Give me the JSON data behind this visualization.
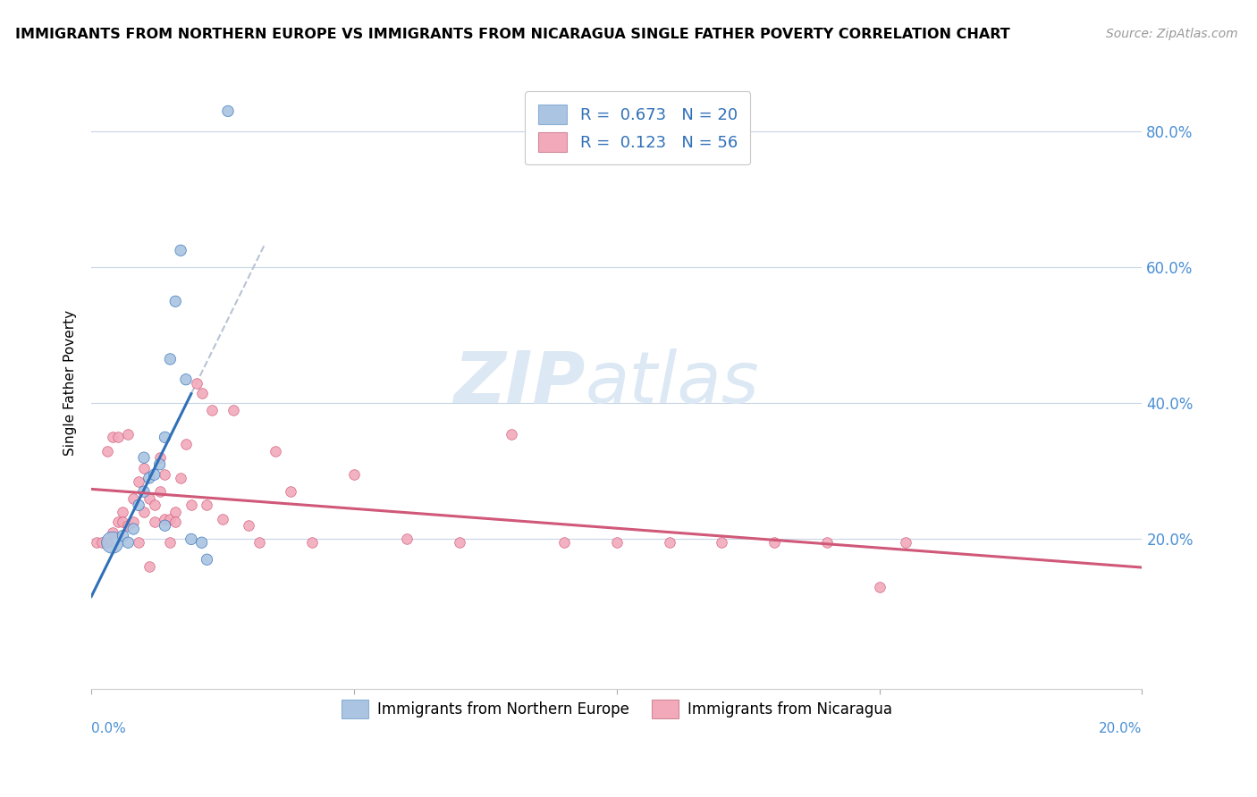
{
  "title": "IMMIGRANTS FROM NORTHERN EUROPE VS IMMIGRANTS FROM NICARAGUA SINGLE FATHER POVERTY CORRELATION CHART",
  "source": "Source: ZipAtlas.com",
  "ylabel": "Single Father Poverty",
  "ytick_labels": [
    "20.0%",
    "40.0%",
    "60.0%",
    "80.0%"
  ],
  "ytick_values": [
    0.2,
    0.4,
    0.6,
    0.8
  ],
  "xlim": [
    0.0,
    0.2
  ],
  "ylim": [
    -0.02,
    0.88
  ],
  "legend_label1_R": "0.673",
  "legend_label1_N": "20",
  "legend_label2_R": "0.123",
  "legend_label2_N": "56",
  "color_blue": "#aac4e2",
  "color_pink": "#f2aabb",
  "trendline_blue": "#3070b8",
  "trendline_pink": "#d05878",
  "trendline_gray": "#b8c4d4",
  "legend_bottom_label1": "Immigrants from Northern Europe",
  "legend_bottom_label2": "Immigrants from Nicaragua",
  "blue_scatter_x": [
    0.004,
    0.006,
    0.007,
    0.008,
    0.009,
    0.01,
    0.01,
    0.011,
    0.012,
    0.013,
    0.014,
    0.014,
    0.015,
    0.016,
    0.017,
    0.018,
    0.019,
    0.021,
    0.022,
    0.026
  ],
  "blue_scatter_y": [
    0.195,
    0.205,
    0.195,
    0.215,
    0.25,
    0.27,
    0.32,
    0.29,
    0.295,
    0.31,
    0.35,
    0.22,
    0.465,
    0.55,
    0.625,
    0.435,
    0.2,
    0.195,
    0.17,
    0.83
  ],
  "blue_scatter_size": [
    300,
    80,
    80,
    80,
    80,
    80,
    80,
    80,
    80,
    80,
    80,
    80,
    80,
    80,
    80,
    80,
    80,
    80,
    80,
    80
  ],
  "pink_scatter_x": [
    0.001,
    0.002,
    0.003,
    0.003,
    0.004,
    0.004,
    0.005,
    0.005,
    0.006,
    0.006,
    0.007,
    0.007,
    0.008,
    0.008,
    0.009,
    0.009,
    0.01,
    0.01,
    0.011,
    0.011,
    0.012,
    0.012,
    0.013,
    0.013,
    0.014,
    0.014,
    0.015,
    0.015,
    0.016,
    0.016,
    0.017,
    0.018,
    0.019,
    0.02,
    0.021,
    0.022,
    0.023,
    0.025,
    0.027,
    0.03,
    0.032,
    0.035,
    0.038,
    0.042,
    0.05,
    0.06,
    0.07,
    0.08,
    0.09,
    0.1,
    0.11,
    0.12,
    0.13,
    0.14,
    0.15,
    0.155
  ],
  "pink_scatter_y": [
    0.195,
    0.195,
    0.195,
    0.33,
    0.21,
    0.35,
    0.225,
    0.35,
    0.24,
    0.225,
    0.355,
    0.22,
    0.26,
    0.225,
    0.195,
    0.285,
    0.24,
    0.305,
    0.26,
    0.16,
    0.25,
    0.225,
    0.27,
    0.32,
    0.23,
    0.295,
    0.23,
    0.195,
    0.24,
    0.225,
    0.29,
    0.34,
    0.25,
    0.43,
    0.415,
    0.25,
    0.39,
    0.23,
    0.39,
    0.22,
    0.195,
    0.33,
    0.27,
    0.195,
    0.295,
    0.2,
    0.195,
    0.355,
    0.195,
    0.195,
    0.195,
    0.195,
    0.195,
    0.195,
    0.13,
    0.195
  ]
}
